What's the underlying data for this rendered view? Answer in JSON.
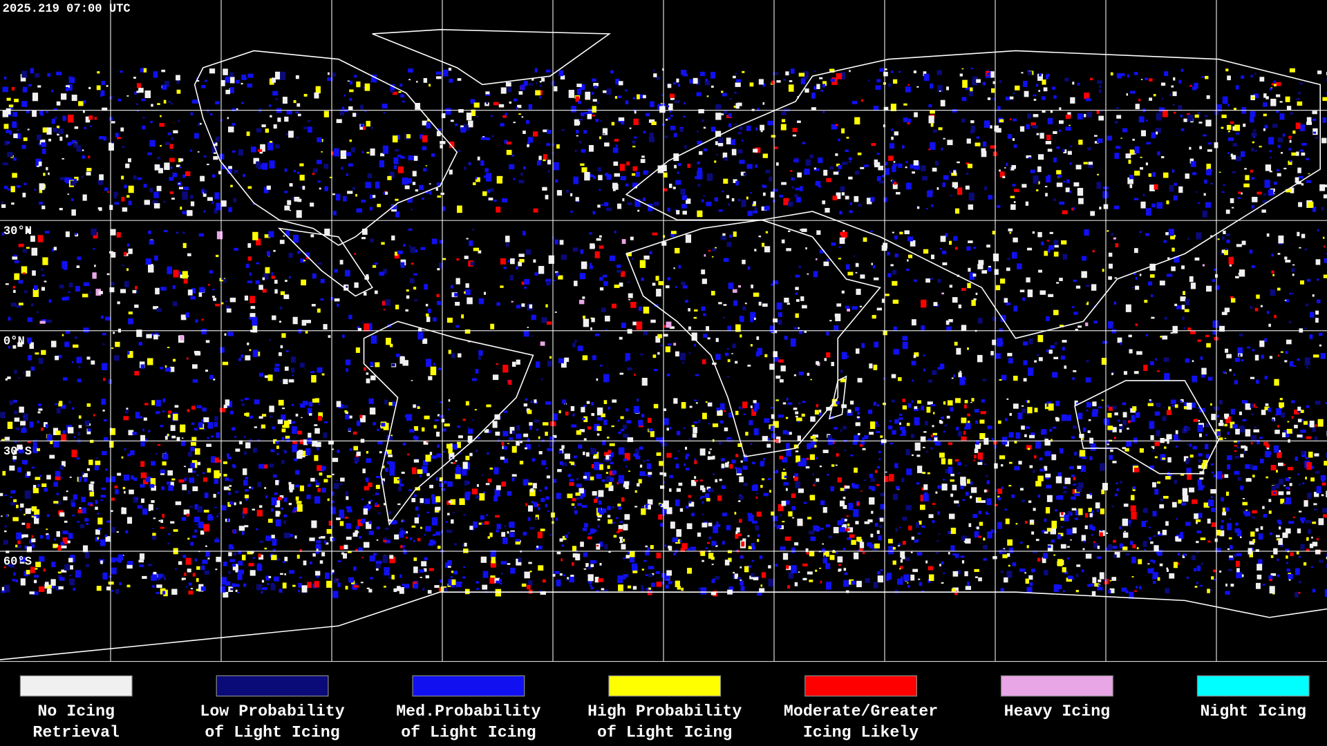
{
  "header": {
    "timestamp": "2025.219 07:00 UTC"
  },
  "map": {
    "latitude_labels": [
      "30°N",
      "0°N",
      "30°S",
      "60°S"
    ]
  },
  "legend": {
    "items": [
      {
        "color": "#f0f0f0",
        "label": [
          "No Icing",
          "Retrieval"
        ]
      },
      {
        "color": "#0a0a78",
        "label": [
          "Low Probability",
          "of Light Icing"
        ]
      },
      {
        "color": "#1010f0",
        "label": [
          "Med.Probability",
          "of Light Icing"
        ]
      },
      {
        "color": "#ffff00",
        "label": [
          "High Probability",
          "of Light Icing"
        ]
      },
      {
        "color": "#ff0000",
        "label": [
          "Moderate/Greater",
          "Icing Likely"
        ]
      },
      {
        "color": "#e8a6e6",
        "label": [
          "Heavy Icing"
        ]
      },
      {
        "color": "#00ffff",
        "label": [
          "Night Icing"
        ]
      }
    ]
  }
}
